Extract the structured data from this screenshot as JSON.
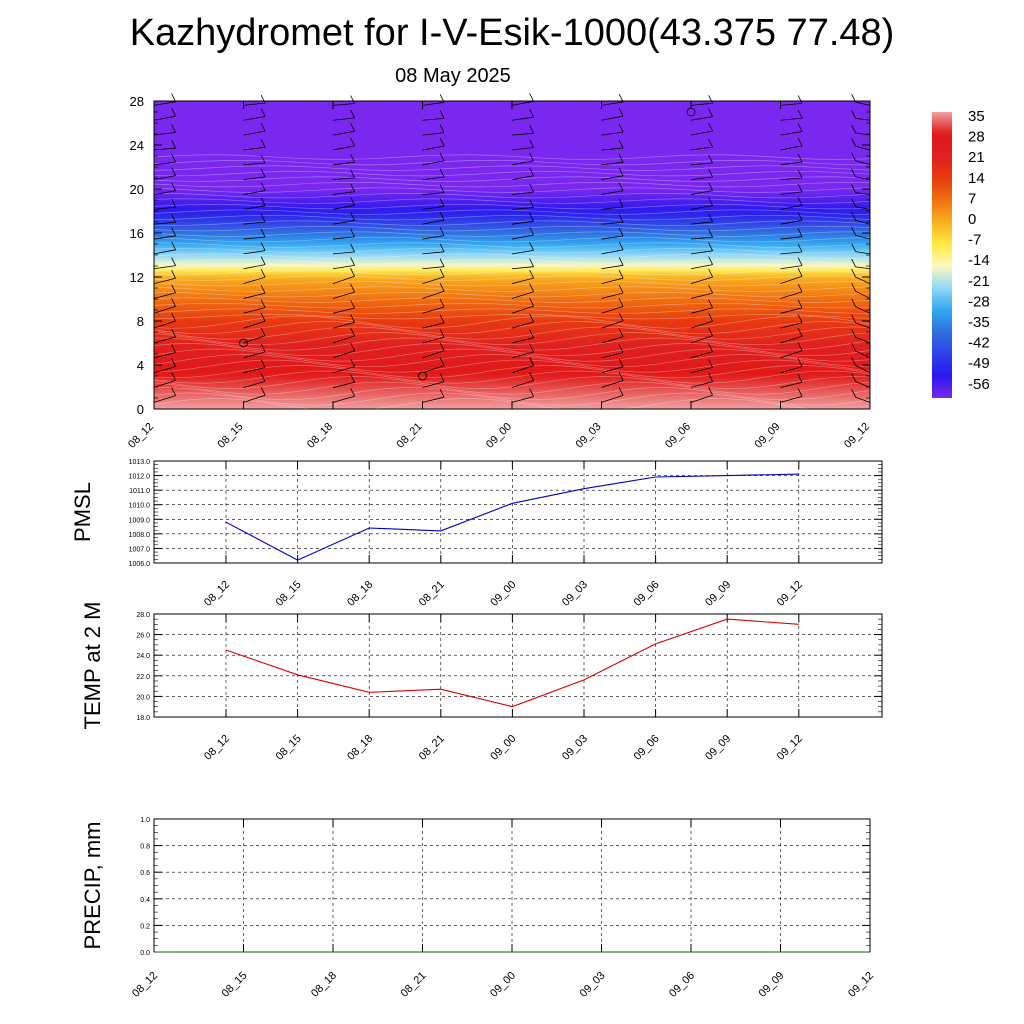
{
  "header": {
    "title": "Kazhydromet for I-V-Esik-1000(43.375 77.48)",
    "subtitle": "08 May 2025"
  },
  "colors": {
    "pmsl_line": "#0000cc",
    "temp_line": "#dd0000",
    "precip_line": "#006600",
    "grid": "#000000"
  },
  "colorbar": {
    "labels": [
      "35",
      "28",
      "21",
      "14",
      "7",
      "0",
      "-7",
      "-14",
      "-21",
      "-28",
      "-35",
      "-42",
      "-49",
      "-56"
    ],
    "colors": [
      "#f0a0a0",
      "#e01818",
      "#e02020",
      "#e83a10",
      "#f07010",
      "#f8b020",
      "#ffe840",
      "#fff8c0",
      "#90d8f8",
      "#30a8f0",
      "#3070e0",
      "#3040e8",
      "#2818f0",
      "#7a28f0"
    ]
  },
  "chart_data": [
    {
      "type": "heatmap",
      "title": "",
      "x_tick_labels": [
        "08_12",
        "08_15",
        "08_18",
        "08_21",
        "09_00",
        "09_03",
        "09_06",
        "09_09",
        "09_12"
      ],
      "y_tick_labels": [
        "0",
        "4",
        "8",
        "12",
        "16",
        "20",
        "24",
        "28"
      ],
      "ylim": [
        0,
        28
      ],
      "color_scale": "temperature",
      "value_range": [
        -56,
        35
      ],
      "temperature_profile": {
        "heights": [
          0,
          4,
          8,
          10,
          12,
          13,
          14,
          16,
          18,
          20,
          22,
          24,
          28
        ],
        "values": [
          35,
          26,
          14,
          7,
          0,
          -14,
          -21,
          -35,
          -49,
          -56,
          -56,
          -56,
          -56
        ]
      }
    },
    {
      "type": "line",
      "ylabel": "PMSL",
      "categories": [
        "08_12",
        "08_15",
        "08_18",
        "08_21",
        "09_00",
        "09_03",
        "09_06",
        "09_09",
        "09_12"
      ],
      "series": [
        {
          "values": [
            1008.8,
            1006.2,
            1008.4,
            1008.2,
            1010.1,
            1011.1,
            1011.9,
            1012.0,
            1012.1
          ]
        }
      ],
      "ylim": [
        1006.0,
        1013.0
      ],
      "y_tick_labels": [
        "1006.0",
        "1007.0",
        "1008.0",
        "1009.0",
        "1010.0",
        "1011.0",
        "1012.0",
        "1013.0"
      ],
      "grid": true
    },
    {
      "type": "line",
      "ylabel": "TEMP at 2 M",
      "categories": [
        "08_12",
        "08_15",
        "08_18",
        "08_21",
        "09_00",
        "09_03",
        "09_06",
        "09_09",
        "09_12"
      ],
      "series": [
        {
          "values": [
            24.5,
            22.1,
            20.4,
            20.7,
            19.0,
            21.6,
            25.1,
            27.5,
            27.0
          ]
        }
      ],
      "ylim": [
        18.0,
        28.0
      ],
      "y_tick_labels": [
        "18.0",
        "20.0",
        "22.0",
        "24.0",
        "26.0",
        "28.0"
      ],
      "grid": true
    },
    {
      "type": "line",
      "ylabel": "PRECIP, mm",
      "categories": [
        "08_12",
        "08_15",
        "08_18",
        "08_21",
        "09_00",
        "09_03",
        "09_06",
        "09_09",
        "09_12"
      ],
      "series": [
        {
          "values": [
            0,
            0,
            0,
            0,
            0,
            0,
            0,
            0,
            0
          ]
        }
      ],
      "ylim": [
        0.0,
        1.0
      ],
      "y_tick_labels": [
        "0.0",
        "0.2",
        "0.4",
        "0.6",
        "0.8",
        "1.0"
      ],
      "grid": true
    }
  ]
}
